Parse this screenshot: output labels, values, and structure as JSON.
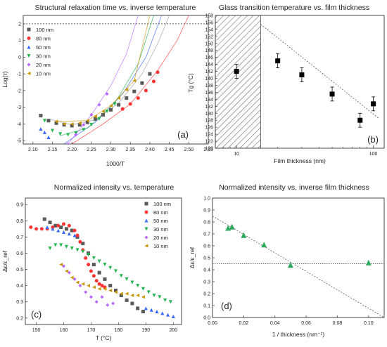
{
  "figure": {
    "panels": [
      {
        "key": "a",
        "title": "Structural relaxation time vs. inverse temperature",
        "xlabel": "1000/T",
        "ylabel": "Log(τ)",
        "letter": "(a)",
        "xlim": [
          2.075,
          2.55
        ],
        "ylim": [
          -5.2,
          2.5
        ],
        "xticks": [
          "2.10",
          "2.15",
          "2.20",
          "2.25",
          "2.30",
          "2.35",
          "2.40",
          "2.45",
          "2.50",
          "2.55"
        ],
        "yticks": [
          "-5",
          "-4",
          "-3",
          "-2",
          "-1",
          "0",
          "1",
          "2"
        ],
        "hline": 2,
        "legend": [
          "100 nm",
          "80 nm",
          "50 nm",
          "30 nm",
          "20 nm",
          "10 nm"
        ]
      },
      {
        "key": "b",
        "title": "Glass transition temperature vs. film thickness",
        "xlabel": "Film thickness (nm)",
        "ylabel": "Tg (°C)",
        "letter": "(b)",
        "xlim": [
          7,
          120
        ],
        "ylim": [
          120,
          158
        ],
        "xticks": [
          "10",
          "100"
        ],
        "yticks": [
          "120",
          "122",
          "124",
          "126",
          "128",
          "130",
          "132",
          "134",
          "136",
          "138",
          "140",
          "142",
          "144",
          "146",
          "148",
          "150",
          "152",
          "154",
          "156",
          "158"
        ]
      },
      {
        "key": "c",
        "title": "Normalized intensity vs. temperature",
        "xlabel": "T (°C)",
        "ylabel": "Δε/ε_ref",
        "letter": "(c)",
        "xlim": [
          146,
          203
        ],
        "ylim": [
          0.16,
          0.94
        ],
        "xticks": [
          "150",
          "160",
          "170",
          "180",
          "190",
          "200"
        ],
        "yticks": [
          "0.2",
          "0.3",
          "0.4",
          "0.5",
          "0.6",
          "0.7",
          "0.8",
          "0.9"
        ],
        "legend": [
          "100 nm",
          "80 nm",
          "50 nm",
          "30 nm",
          "20 nm",
          "10 nm"
        ]
      },
      {
        "key": "d",
        "title": "Normalized intensity vs. inverse film thickness",
        "xlabel": "1 / thickness (nm⁻¹)",
        "ylabel": "Δε/ε_ref",
        "letter": "(d)",
        "xlim": [
          0,
          0.11
        ],
        "ylim": [
          0,
          1.0
        ],
        "xticks": [
          "0.00",
          "0.02",
          "0.04",
          "0.06",
          "0.08",
          "0.10"
        ],
        "yticks": [
          "0.0",
          "0.1",
          "0.2",
          "0.3",
          "0.4",
          "0.5",
          "0.6",
          "0.7",
          "0.8",
          "0.9",
          "1.0"
        ],
        "hline": 0.45
      }
    ]
  },
  "chart_data": [
    {
      "type": "scatter",
      "title": "Structural relaxation time vs. inverse temperature",
      "xlabel": "1000/T",
      "ylabel": "Log(τ)",
      "xlim": [
        2.075,
        2.55
      ],
      "ylim": [
        -5.2,
        2.5
      ],
      "grid": false,
      "legend_position": "top-left",
      "series": [
        {
          "name": "100 nm",
          "color": "#595959",
          "marker": "square",
          "x": [
            2.12,
            2.14,
            2.16,
            2.18,
            2.2,
            2.22,
            2.24,
            2.26,
            2.28,
            2.3,
            2.32,
            2.34,
            2.36,
            2.38,
            2.4
          ],
          "y": [
            -3.5,
            -3.8,
            -3.95,
            -4.05,
            -4.1,
            -4.05,
            -3.9,
            -3.7,
            -3.45,
            -3.15,
            -2.85,
            -2.45,
            -2.05,
            -1.55,
            -1.0
          ]
        },
        {
          "name": "80 nm",
          "color": "#ff3333",
          "marker": "circle",
          "x": [
            2.33,
            2.35,
            2.37,
            2.39,
            2.41,
            2.42
          ],
          "y": [
            -3.1,
            -2.8,
            -2.45,
            -2.0,
            -1.45,
            -0.9
          ]
        },
        {
          "name": "50 nm",
          "color": "#3366ff",
          "marker": "triangle-up",
          "x": [
            2.12,
            2.13,
            2.14
          ],
          "y": [
            -4.3,
            -4.5,
            -4.8
          ]
        },
        {
          "name": "30 nm",
          "color": "#22b34c",
          "marker": "triangle-down",
          "x": [
            2.13,
            2.15,
            2.17,
            2.19,
            2.21,
            2.23,
            2.25,
            2.27,
            2.29,
            2.31
          ],
          "y": [
            -3.8,
            -4.4,
            -4.6,
            -4.65,
            -4.55,
            -4.35,
            -4.05,
            -3.7,
            -3.25,
            -2.8
          ]
        },
        {
          "name": "20 nm",
          "color": "#b866ff",
          "marker": "diamond",
          "x": [
            2.19,
            2.21,
            2.23,
            2.25,
            2.27,
            2.29
          ],
          "y": [
            -5.2,
            -4.65,
            -4.05,
            -3.45,
            -2.85,
            -2.2
          ]
        },
        {
          "name": "10 nm",
          "color": "#c8960a",
          "marker": "triangle-left",
          "x": [
            2.16,
            2.18,
            2.2,
            2.22,
            2.24,
            2.26,
            2.28,
            2.3,
            2.32,
            2.34,
            2.36
          ],
          "y": [
            -3.85,
            -4.0,
            -4.0,
            -3.95,
            -3.8,
            -3.55,
            -3.25,
            -2.9,
            -2.45,
            -1.95,
            -1.4
          ]
        }
      ],
      "fit_curves": [
        {
          "color": "#999999",
          "x": [
            2.14,
            2.2,
            2.26,
            2.32,
            2.38,
            2.42,
            2.45
          ],
          "y": [
            -3.7,
            -4.05,
            -3.75,
            -2.75,
            -1.0,
            0.8,
            2.5
          ]
        },
        {
          "color": "#ff3333",
          "x": [
            2.2,
            2.28,
            2.35,
            2.42,
            2.47,
            2.5
          ],
          "y": [
            -5.2,
            -4.0,
            -2.8,
            -0.8,
            1.0,
            2.5
          ]
        },
        {
          "color": "#3366ff",
          "x": [
            2.18,
            2.26,
            2.33,
            2.39,
            2.43
          ],
          "y": [
            -5.2,
            -3.9,
            -2.2,
            0.0,
            2.5
          ]
        },
        {
          "color": "#22b34c",
          "x": [
            2.17,
            2.24,
            2.31,
            2.37,
            2.41
          ],
          "y": [
            -4.7,
            -4.25,
            -2.75,
            -0.4,
            2.5
          ]
        },
        {
          "color": "#b866ff",
          "x": [
            2.19,
            2.25,
            2.3,
            2.34,
            2.37
          ],
          "y": [
            -5.2,
            -3.45,
            -1.7,
            0.2,
            2.5
          ]
        },
        {
          "color": "#c8960a",
          "x": [
            2.16,
            2.24,
            2.3,
            2.36,
            2.4
          ],
          "y": [
            -3.85,
            -3.8,
            -2.9,
            -1.4,
            2.5
          ]
        }
      ]
    },
    {
      "type": "scatter",
      "title": "Glass transition temperature vs. film thickness",
      "xlabel": "Film thickness (nm)",
      "ylabel": "Tg (°C)",
      "xscale": "log",
      "xlim": [
        7,
        120
      ],
      "ylim": [
        120,
        158
      ],
      "grid": false,
      "series": [
        {
          "color": "#000000",
          "marker": "square",
          "x": [
            10,
            20,
            30,
            50,
            80,
            100
          ],
          "y": [
            142,
            145,
            141,
            135.5,
            128,
            132.7
          ],
          "err": [
            2,
            2,
            2,
            2,
            2,
            2
          ]
        }
      ],
      "hatched_region": [
        7,
        15
      ],
      "trend_line": {
        "x": [
          15,
          110
        ],
        "y": [
          155.5,
          128.5
        ]
      }
    },
    {
      "type": "scatter",
      "title": "Normalized intensity vs. temperature",
      "xlabel": "T (°C)",
      "ylabel": "Δε/ε_ref",
      "xlim": [
        146,
        203
      ],
      "ylim": [
        0.16,
        0.94
      ],
      "grid": false,
      "legend_position": "top-right",
      "series": [
        {
          "name": "100 nm",
          "color": "#595959",
          "marker": "square",
          "x": [
            153,
            155,
            157,
            159,
            161,
            163,
            165,
            167,
            169,
            171,
            173,
            175,
            177,
            179,
            181,
            183,
            185,
            187,
            189
          ],
          "y": [
            0.81,
            0.79,
            0.77,
            0.76,
            0.75,
            0.74,
            0.7,
            0.66,
            0.6,
            0.53,
            0.48,
            0.44,
            0.4,
            0.37,
            0.34,
            0.31,
            0.29,
            0.26,
            0.24
          ]
        },
        {
          "name": "80 nm",
          "color": "#ff3333",
          "marker": "circle",
          "x": [
            148,
            150,
            152,
            154,
            156,
            158,
            160,
            162,
            164,
            165,
            166,
            167,
            168,
            169,
            170,
            171,
            172,
            173,
            174,
            175
          ],
          "y": [
            0.76,
            0.75,
            0.75,
            0.75,
            0.76,
            0.77,
            0.78,
            0.77,
            0.74,
            0.71,
            0.67,
            0.62,
            0.57,
            0.53,
            0.49,
            0.46,
            0.43,
            0.41,
            0.4,
            0.39
          ]
        },
        {
          "name": "50 nm",
          "color": "#3366ff",
          "marker": "triangle-up",
          "x": [
            154,
            156,
            158,
            160,
            162,
            164,
            190,
            192,
            194,
            196,
            198,
            200
          ],
          "y": [
            0.76,
            0.75,
            0.74,
            0.73,
            0.72,
            0.71,
            0.26,
            0.25,
            0.24,
            0.23,
            0.22,
            0.21
          ]
        },
        {
          "name": "30 nm",
          "color": "#22b34c",
          "marker": "triangle-down",
          "x": [
            155,
            157,
            159,
            161,
            163,
            165,
            167,
            169,
            171,
            173,
            175,
            177,
            179,
            181,
            183,
            185,
            187,
            189,
            191,
            193,
            195,
            197,
            199
          ],
          "y": [
            0.63,
            0.65,
            0.65,
            0.64,
            0.63,
            0.62,
            0.61,
            0.59,
            0.57,
            0.55,
            0.53,
            0.51,
            0.49,
            0.46,
            0.44,
            0.42,
            0.4,
            0.38,
            0.36,
            0.34,
            0.33,
            0.31,
            0.3
          ]
        },
        {
          "name": "20 nm",
          "color": "#b866ff",
          "marker": "diamond",
          "x": [
            160,
            162,
            164,
            166,
            168,
            170,
            172,
            174,
            176,
            178
          ],
          "y": [
            0.52,
            0.48,
            0.44,
            0.4,
            0.36,
            0.33,
            0.3,
            0.33,
            0.28,
            0.29
          ]
        },
        {
          "name": "10 nm",
          "color": "#c8960a",
          "marker": "triangle-left",
          "x": [
            159,
            161,
            163,
            165,
            167,
            169,
            171,
            173,
            175,
            177,
            179,
            181,
            183,
            185,
            187,
            189
          ],
          "y": [
            0.53,
            0.49,
            0.45,
            0.42,
            0.41,
            0.4,
            0.39,
            0.38,
            0.38,
            0.37,
            0.36,
            0.35,
            0.35,
            0.34,
            0.34,
            0.33
          ]
        }
      ]
    },
    {
      "type": "scatter",
      "title": "Normalized intensity vs. inverse film thickness",
      "xlabel": "1 / thickness (nm⁻¹)",
      "ylabel": "Δε/ε_ref",
      "xlim": [
        0,
        0.11
      ],
      "ylim": [
        0,
        1.0
      ],
      "grid": false,
      "series": [
        {
          "color": "#2eaa5c",
          "marker": "triangle-up",
          "x": [
            0.01,
            0.0125,
            0.02,
            0.033,
            0.05,
            0.1
          ],
          "y": [
            0.75,
            0.76,
            0.69,
            0.61,
            0.44,
            0.46
          ]
        }
      ],
      "trend_line": {
        "x": [
          0,
          0.11
        ],
        "y": [
          0.85,
          0.0
        ]
      },
      "hline": 0.45
    }
  ]
}
